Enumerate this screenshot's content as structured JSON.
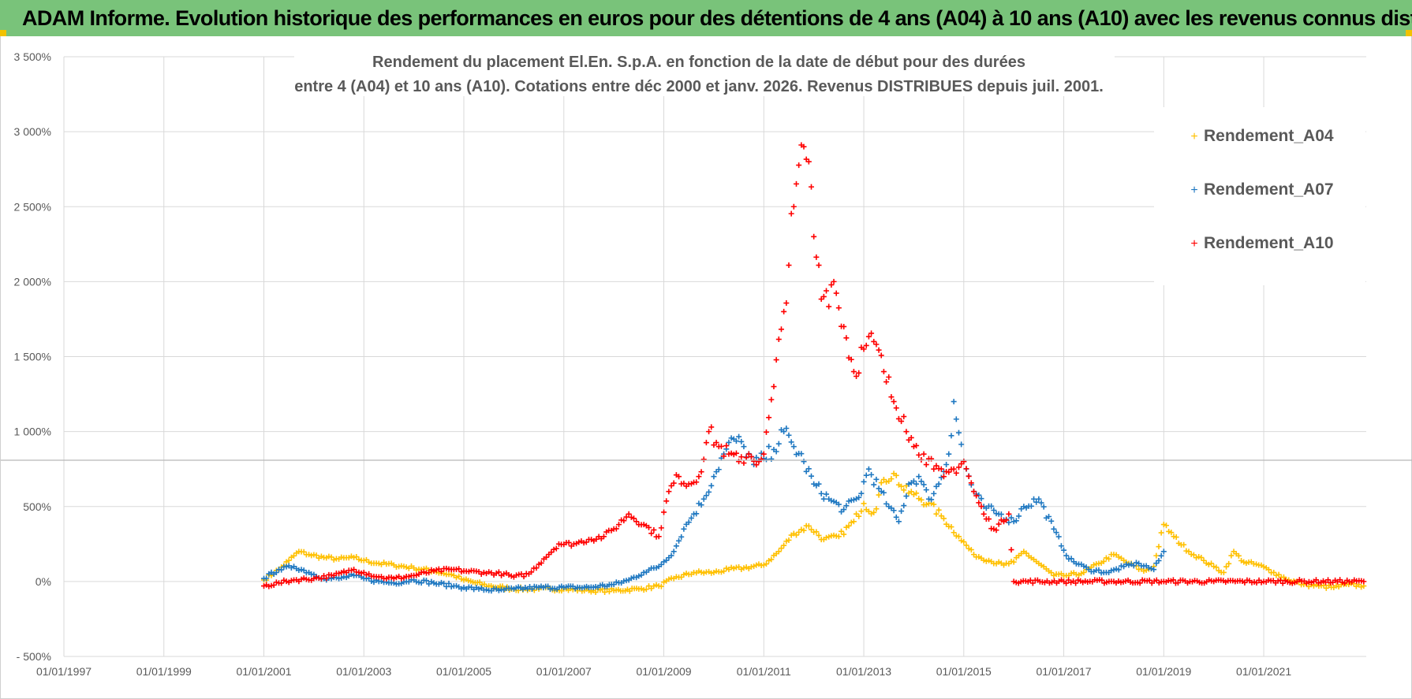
{
  "banner": {
    "text": "ADAM Informe. Evolution historique des performances en euros pour des détentions de 4 ans (A04) à 10 ans (A10) avec les revenus connus distribués"
  },
  "chart_data": {
    "type": "scatter",
    "title_line1": "Rendement du placement El.En. S.p.A. en fonction de la date de début pour des durées",
    "title_line2": "entre 4 (A04) et 10 ans (A10).  Cotations entre déc 2000 et janv. 2026. Revenus DISTRIBUES depuis juil. 2001.",
    "ylim": [
      -500,
      3500
    ],
    "xlim": [
      1997.0,
      2023.05
    ],
    "yticks": [
      {
        "value": -500,
        "label": "- 500%"
      },
      {
        "value": 0,
        "label": "0%"
      },
      {
        "value": 500,
        "label": "500%"
      },
      {
        "value": 1000,
        "label": "1 000%"
      },
      {
        "value": 1500,
        "label": "1 500%"
      },
      {
        "value": 2000,
        "label": "2 000%"
      },
      {
        "value": 2500,
        "label": "2 500%"
      },
      {
        "value": 3000,
        "label": "3 000%"
      },
      {
        "value": 3500,
        "label": "3 500%"
      }
    ],
    "xticks": [
      {
        "value": 1997,
        "label": "01/01/1997"
      },
      {
        "value": 1999,
        "label": "01/01/1999"
      },
      {
        "value": 2001,
        "label": "01/01/2001"
      },
      {
        "value": 2003,
        "label": "01/01/2003"
      },
      {
        "value": 2005,
        "label": "01/01/2005"
      },
      {
        "value": 2007,
        "label": "01/01/2007"
      },
      {
        "value": 2009,
        "label": "01/01/2009"
      },
      {
        "value": 2011,
        "label": "01/01/2011"
      },
      {
        "value": 2013,
        "label": "01/01/2013"
      },
      {
        "value": 2015,
        "label": "01/01/2015"
      },
      {
        "value": 2017,
        "label": "01/01/2017"
      },
      {
        "value": 2019,
        "label": "01/01/2019"
      },
      {
        "value": 2021,
        "label": "01/01/2021"
      }
    ],
    "legend_position": "top-right",
    "series": [
      {
        "name": "Rendement_A04",
        "color": "#ffc000",
        "x": [
          2001.0,
          2001.3,
          2001.5,
          2001.7,
          2001.9,
          2002.2,
          2002.5,
          2002.8,
          2003.0,
          2003.3,
          2003.6,
          2004.0,
          2004.4,
          2004.8,
          2005.0,
          2005.5,
          2006.0,
          2006.5,
          2007.0,
          2007.5,
          2008.0,
          2008.5,
          2008.9,
          2009.2,
          2009.6,
          2010.0,
          2010.3,
          2010.6,
          2011.0,
          2011.3,
          2011.6,
          2011.9,
          2012.2,
          2012.5,
          2012.8,
          2013.0,
          2013.2,
          2013.4,
          2013.6,
          2013.8,
          2014.0,
          2014.3,
          2014.6,
          2014.9,
          2015.2,
          2015.5,
          2015.8,
          2016.0,
          2016.2,
          2016.5,
          2016.8,
          2017.1,
          2017.4,
          2017.7,
          2018.0,
          2018.3,
          2018.6,
          2018.8,
          2019.0,
          2019.2,
          2019.5,
          2019.8,
          2020.0,
          2020.2,
          2020.4,
          2020.6,
          2020.9,
          2021.2,
          2021.5,
          2021.8,
          2022.1,
          2022.4,
          2022.7,
          2023.0
        ],
        "y": [
          10,
          80,
          140,
          200,
          180,
          160,
          150,
          160,
          140,
          120,
          110,
          90,
          70,
          40,
          10,
          -30,
          -50,
          -50,
          -50,
          -60,
          -60,
          -50,
          -30,
          20,
          60,
          60,
          80,
          90,
          110,
          200,
          320,
          370,
          280,
          300,
          400,
          520,
          460,
          680,
          720,
          610,
          580,
          520,
          420,
          300,
          180,
          140,
          110,
          130,
          200,
          120,
          40,
          40,
          60,
          120,
          180,
          120,
          70,
          100,
          380,
          300,
          200,
          140,
          100,
          60,
          200,
          130,
          110,
          60,
          10,
          -20,
          -30,
          -40,
          -20,
          -30
        ]
      },
      {
        "name": "Rendement_A07",
        "color": "#1f78c1",
        "x": [
          2001.0,
          2001.3,
          2001.6,
          2001.9,
          2002.2,
          2002.5,
          2002.8,
          2003.0,
          2003.3,
          2003.6,
          2004.0,
          2004.4,
          2004.8,
          2005.0,
          2005.3,
          2005.7,
          2006.0,
          2006.5,
          2007.0,
          2007.5,
          2008.0,
          2008.3,
          2008.6,
          2008.9,
          2009.2,
          2009.4,
          2009.6,
          2009.8,
          2010.0,
          2010.2,
          2010.4,
          2010.6,
          2010.8,
          2011.0,
          2011.2,
          2011.4,
          2011.6,
          2011.8,
          2012.0,
          2012.3,
          2012.6,
          2012.9,
          2013.1,
          2013.3,
          2013.5,
          2013.7,
          2013.9,
          2014.1,
          2014.3,
          2014.5,
          2014.7,
          2014.8,
          2015.0,
          2015.2,
          2015.4,
          2015.7,
          2016.0,
          2016.2,
          2016.5,
          2016.8,
          2017.1,
          2017.5,
          2017.9,
          2018.2,
          2018.5,
          2018.8,
          2019.0
        ],
        "y": [
          20,
          80,
          100,
          60,
          20,
          20,
          40,
          20,
          0,
          -10,
          10,
          -10,
          -30,
          -40,
          -50,
          -60,
          -50,
          -40,
          -40,
          -40,
          -20,
          10,
          60,
          100,
          200,
          350,
          450,
          550,
          700,
          850,
          950,
          900,
          780,
          820,
          880,
          1000,
          900,
          800,
          650,
          550,
          480,
          560,
          750,
          620,
          500,
          400,
          650,
          700,
          550,
          650,
          850,
          1200,
          800,
          600,
          500,
          450,
          400,
          500,
          550,
          350,
          150,
          80,
          60,
          100,
          120,
          80,
          200
        ]
      },
      {
        "name": "Rendement_A10",
        "color": "#ff0000",
        "x": [
          2001.0,
          2001.3,
          2001.6,
          2002.0,
          2002.4,
          2002.8,
          2003.0,
          2003.3,
          2003.6,
          2004.0,
          2004.4,
          2004.8,
          2005.0,
          2005.4,
          2005.8,
          2006.0,
          2006.3,
          2006.6,
          2006.9,
          2007.2,
          2007.5,
          2007.8,
          2008.0,
          2008.3,
          2008.6,
          2008.9,
          2009.1,
          2009.3,
          2009.5,
          2009.7,
          2009.9,
          2010.1,
          2010.3,
          2010.5,
          2010.7,
          2010.9,
          2011.0,
          2011.2,
          2011.4,
          2011.6,
          2011.8,
          2011.9,
          2012.0,
          2012.2,
          2012.4,
          2012.6,
          2012.8,
          2013.0,
          2013.2,
          2013.4,
          2013.6,
          2013.8,
          2014.0,
          2014.2,
          2014.4,
          2014.6,
          2014.8,
          2015.0,
          2015.2,
          2015.4,
          2015.6,
          2015.8,
          2015.9,
          2016.0,
          2017.0,
          2018.0,
          2019.0,
          2020.0,
          2021.0,
          2022.0,
          2023.0
        ],
        "y": [
          -30,
          -10,
          10,
          20,
          40,
          80,
          60,
          30,
          20,
          40,
          70,
          80,
          70,
          60,
          50,
          30,
          50,
          150,
          250,
          250,
          280,
          300,
          350,
          450,
          380,
          300,
          600,
          700,
          650,
          700,
          1000,
          900,
          850,
          800,
          850,
          800,
          850,
          1300,
          1800,
          2500,
          2900,
          2800,
          2300,
          1900,
          2000,
          1700,
          1400,
          1550,
          1600,
          1400,
          1200,
          1100,
          900,
          850,
          750,
          700,
          750,
          800,
          600,
          450,
          350,
          400,
          450,
          0,
          0,
          0,
          0,
          0,
          0,
          0,
          0
        ]
      }
    ]
  }
}
